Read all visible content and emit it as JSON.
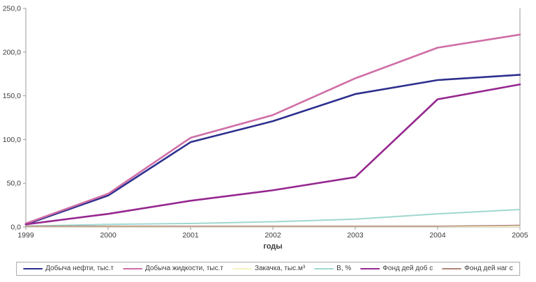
{
  "chart_data": {
    "type": "line",
    "title": "",
    "xlabel": "годы",
    "ylabel": "",
    "x": [
      1999,
      2000,
      2001,
      2002,
      2003,
      2004,
      2005
    ],
    "x_tick_labels": [
      "1999",
      "2000",
      "2001",
      "2002",
      "2003",
      "2004",
      "2005"
    ],
    "y_ticks": [
      {
        "label": "0,0",
        "value": 0
      },
      {
        "label": "50,0",
        "value": 50
      },
      {
        "label": "100,0",
        "value": 100
      },
      {
        "label": "150,0",
        "value": 150
      },
      {
        "label": "200,0",
        "value": 200
      },
      {
        "label": "250,0",
        "value": 250
      }
    ],
    "ylim": [
      0,
      250
    ],
    "grid": false,
    "legend_position": "bottom",
    "axis_color": "#9a9a9a",
    "text_color": "#3b3b3b",
    "series": [
      {
        "name": "Добыча нефти, тыс.т",
        "color": "#2d2f8f",
        "width": 2.6,
        "values": [
          3,
          36,
          97,
          121,
          152,
          168,
          174
        ]
      },
      {
        "name": "Добыча жидкости, тыс.т",
        "color": "#cf6ea6",
        "width": 2.6,
        "values": [
          4,
          38,
          102,
          128,
          170,
          205,
          220
        ]
      },
      {
        "name": "Закачка, тыс.м³",
        "color": "#f3f1c0",
        "width": 1.4,
        "values": [
          0.5,
          0.5,
          0.5,
          0.5,
          0.5,
          0.5,
          0.5
        ]
      },
      {
        "name": "В, %",
        "color": "#9fd8cf",
        "width": 2.0,
        "values": [
          1,
          3,
          4,
          6,
          9,
          15,
          20
        ]
      },
      {
        "name": "Фонд дей доб с",
        "color": "#95278f",
        "width": 2.6,
        "values": [
          3,
          15,
          30,
          42,
          57,
          146,
          163
        ]
      },
      {
        "name": "Фонд дей наг с",
        "color": "#b08579",
        "width": 1.4,
        "values": [
          1,
          1,
          1,
          1,
          1,
          1,
          2
        ]
      }
    ]
  }
}
